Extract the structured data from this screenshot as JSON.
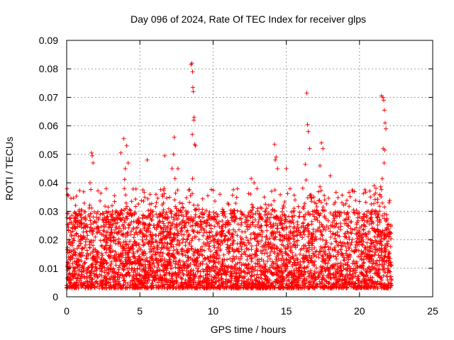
{
  "chart_data": {
    "type": "scatter",
    "title": "Day 096 of 2024, Rate Of TEC Index for receiver glps",
    "xlabel": "GPS time / hours",
    "ylabel": "ROTI / TECUs",
    "xlim": [
      0,
      25
    ],
    "ylim": [
      0,
      0.09
    ],
    "xticks": [
      0,
      5,
      10,
      15,
      20,
      25
    ],
    "xtick_labels": [
      "0",
      "5",
      "10",
      "15",
      "20",
      "25"
    ],
    "yticks": [
      0,
      0.01,
      0.02,
      0.03,
      0.04,
      0.05,
      0.06,
      0.07,
      0.08,
      0.09
    ],
    "ytick_labels": [
      "0",
      "0.01",
      "0.02",
      "0.03",
      "0.04",
      "0.05",
      "0.06",
      "0.07",
      "0.08",
      "0.09"
    ],
    "grid": true,
    "marker": "+",
    "color": "#ff0000",
    "data_range_x": [
      0,
      22.2
    ],
    "dense_band": [
      0.003,
      0.025
    ],
    "series": [
      {
        "name": "ROTI",
        "x": [
          1.7,
          1.75,
          1.8,
          1.6,
          3.7,
          3.9,
          4.1,
          4.2,
          4.0,
          5.5,
          6.7,
          7.3,
          7.35,
          7.4,
          7.2,
          7.6,
          8.5,
          8.55,
          8.6,
          8.62,
          8.65,
          8.7,
          8.68,
          8.58,
          8.75,
          8.8,
          8.6,
          12.6,
          12.8,
          13.0,
          14.2,
          14.3,
          14.25,
          14.4,
          15.0,
          16.3,
          16.4,
          16.45,
          16.5,
          16.6,
          16.35,
          17.4,
          17.5,
          17.3,
          18.0,
          19.5,
          19.55,
          21.0,
          21.5,
          21.6,
          21.65,
          21.7,
          21.75,
          21.8,
          21.62,
          21.72,
          21.68,
          21.55,
          2.7,
          3.1,
          5.7,
          10.2,
          11.5,
          13.5,
          15.6,
          18.8,
          20.6,
          9.3,
          6.1,
          0.4
        ],
        "y": [
          0.0505,
          0.0495,
          0.047,
          0.04,
          0.0505,
          0.0555,
          0.053,
          0.047,
          0.045,
          0.048,
          0.0495,
          0.05,
          0.056,
          0.0415,
          0.045,
          0.045,
          0.0815,
          0.082,
          0.079,
          0.0735,
          0.072,
          0.063,
          0.062,
          0.057,
          0.0535,
          0.053,
          0.0415,
          0.0415,
          0.04,
          0.038,
          0.0535,
          0.049,
          0.048,
          0.045,
          0.045,
          0.0465,
          0.0715,
          0.0605,
          0.058,
          0.052,
          0.041,
          0.054,
          0.052,
          0.046,
          0.0425,
          0.0375,
          0.037,
          0.039,
          0.0705,
          0.07,
          0.069,
          0.0655,
          0.061,
          0.059,
          0.052,
          0.0515,
          0.047,
          0.0415,
          0.038,
          0.032,
          0.036,
          0.027,
          0.028,
          0.035,
          0.034,
          0.033,
          0.03,
          0.029,
          0.036,
          0.024
        ]
      }
    ]
  }
}
